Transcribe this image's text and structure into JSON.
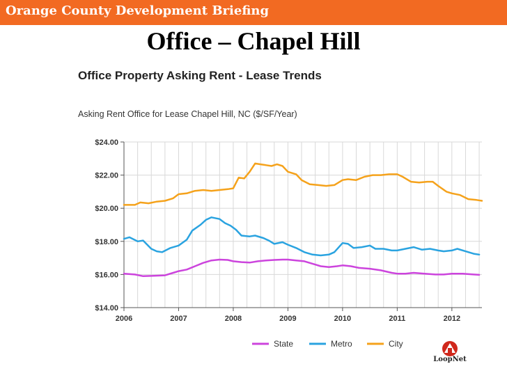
{
  "banner": {
    "text": "Orange County Development Briefing"
  },
  "slide_title": "Office – Chapel Hill",
  "chart_heading": "Office Property Asking Rent - Lease Trends",
  "chart_subtitle": "Asking Rent Office for Lease Chapel Hill, NC ($/SF/Year)",
  "logo_text": "LoopNet",
  "colors": {
    "banner": "#f26a22",
    "state": "#cc44dd",
    "metro": "#2aa3e0",
    "city": "#f5a21b"
  },
  "chart_data": {
    "type": "line",
    "title": "Asking Rent Office for Lease Chapel Hill, NC ($/SF/Year)",
    "xlabel": "",
    "ylabel": "",
    "xlim": [
      2006.0,
      2012.55
    ],
    "ylim": [
      14,
      24
    ],
    "x_ticks": [
      "2006",
      "2007",
      "2008",
      "2009",
      "2010",
      "2011",
      "2012"
    ],
    "y_ticks": [
      "$14.00",
      "$16.00",
      "$18.00",
      "$20.00",
      "$22.00",
      "$24.00"
    ],
    "grid": true,
    "legend": "bottom",
    "series": [
      {
        "name": "State",
        "points": [
          [
            2006.0,
            16.05
          ],
          [
            2006.2,
            16.0
          ],
          [
            2006.35,
            15.9
          ],
          [
            2006.55,
            15.92
          ],
          [
            2006.75,
            15.95
          ],
          [
            2006.9,
            16.1
          ],
          [
            2007.0,
            16.2
          ],
          [
            2007.15,
            16.3
          ],
          [
            2007.3,
            16.5
          ],
          [
            2007.45,
            16.7
          ],
          [
            2007.6,
            16.85
          ],
          [
            2007.75,
            16.9
          ],
          [
            2007.9,
            16.88
          ],
          [
            2008.0,
            16.8
          ],
          [
            2008.15,
            16.75
          ],
          [
            2008.3,
            16.72
          ],
          [
            2008.45,
            16.8
          ],
          [
            2008.6,
            16.85
          ],
          [
            2008.75,
            16.88
          ],
          [
            2008.9,
            16.9
          ],
          [
            2009.0,
            16.9
          ],
          [
            2009.15,
            16.85
          ],
          [
            2009.3,
            16.8
          ],
          [
            2009.45,
            16.65
          ],
          [
            2009.6,
            16.5
          ],
          [
            2009.75,
            16.45
          ],
          [
            2009.9,
            16.5
          ],
          [
            2010.0,
            16.55
          ],
          [
            2010.15,
            16.5
          ],
          [
            2010.3,
            16.4
          ],
          [
            2010.5,
            16.35
          ],
          [
            2010.7,
            16.25
          ],
          [
            2010.9,
            16.1
          ],
          [
            2011.0,
            16.05
          ],
          [
            2011.15,
            16.05
          ],
          [
            2011.3,
            16.1
          ],
          [
            2011.5,
            16.05
          ],
          [
            2011.7,
            16.0
          ],
          [
            2011.85,
            16.0
          ],
          [
            2012.0,
            16.05
          ],
          [
            2012.2,
            16.05
          ],
          [
            2012.4,
            16.0
          ],
          [
            2012.5,
            15.98
          ]
        ]
      },
      {
        "name": "Metro",
        "points": [
          [
            2006.0,
            18.15
          ],
          [
            2006.1,
            18.25
          ],
          [
            2006.25,
            18.0
          ],
          [
            2006.35,
            18.05
          ],
          [
            2006.5,
            17.55
          ],
          [
            2006.6,
            17.4
          ],
          [
            2006.7,
            17.35
          ],
          [
            2006.85,
            17.6
          ],
          [
            2007.0,
            17.75
          ],
          [
            2007.15,
            18.1
          ],
          [
            2007.25,
            18.65
          ],
          [
            2007.4,
            19.0
          ],
          [
            2007.5,
            19.3
          ],
          [
            2007.6,
            19.45
          ],
          [
            2007.75,
            19.35
          ],
          [
            2007.85,
            19.1
          ],
          [
            2007.95,
            18.95
          ],
          [
            2008.05,
            18.7
          ],
          [
            2008.15,
            18.35
          ],
          [
            2008.3,
            18.3
          ],
          [
            2008.4,
            18.35
          ],
          [
            2008.55,
            18.2
          ],
          [
            2008.65,
            18.05
          ],
          [
            2008.75,
            17.85
          ],
          [
            2008.9,
            17.95
          ],
          [
            2009.0,
            17.8
          ],
          [
            2009.15,
            17.6
          ],
          [
            2009.3,
            17.35
          ],
          [
            2009.45,
            17.2
          ],
          [
            2009.6,
            17.15
          ],
          [
            2009.75,
            17.2
          ],
          [
            2009.85,
            17.35
          ],
          [
            2010.0,
            17.9
          ],
          [
            2010.1,
            17.85
          ],
          [
            2010.2,
            17.6
          ],
          [
            2010.35,
            17.65
          ],
          [
            2010.5,
            17.75
          ],
          [
            2010.6,
            17.55
          ],
          [
            2010.75,
            17.55
          ],
          [
            2010.9,
            17.45
          ],
          [
            2011.0,
            17.45
          ],
          [
            2011.15,
            17.55
          ],
          [
            2011.3,
            17.65
          ],
          [
            2011.45,
            17.5
          ],
          [
            2011.6,
            17.55
          ],
          [
            2011.75,
            17.45
          ],
          [
            2011.85,
            17.4
          ],
          [
            2012.0,
            17.45
          ],
          [
            2012.1,
            17.55
          ],
          [
            2012.25,
            17.4
          ],
          [
            2012.4,
            17.25
          ],
          [
            2012.5,
            17.2
          ]
        ]
      },
      {
        "name": "City",
        "points": [
          [
            2006.0,
            20.2
          ],
          [
            2006.1,
            20.2
          ],
          [
            2006.2,
            20.2
          ],
          [
            2006.3,
            20.35
          ],
          [
            2006.45,
            20.3
          ],
          [
            2006.6,
            20.4
          ],
          [
            2006.75,
            20.45
          ],
          [
            2006.9,
            20.6
          ],
          [
            2007.0,
            20.85
          ],
          [
            2007.15,
            20.9
          ],
          [
            2007.3,
            21.05
          ],
          [
            2007.45,
            21.1
          ],
          [
            2007.6,
            21.05
          ],
          [
            2007.75,
            21.1
          ],
          [
            2007.9,
            21.15
          ],
          [
            2008.0,
            21.2
          ],
          [
            2008.1,
            21.85
          ],
          [
            2008.2,
            21.8
          ],
          [
            2008.3,
            22.2
          ],
          [
            2008.4,
            22.7
          ],
          [
            2008.5,
            22.65
          ],
          [
            2008.6,
            22.6
          ],
          [
            2008.7,
            22.55
          ],
          [
            2008.8,
            22.65
          ],
          [
            2008.9,
            22.55
          ],
          [
            2009.0,
            22.2
          ],
          [
            2009.15,
            22.05
          ],
          [
            2009.25,
            21.7
          ],
          [
            2009.4,
            21.45
          ],
          [
            2009.55,
            21.4
          ],
          [
            2009.7,
            21.35
          ],
          [
            2009.85,
            21.4
          ],
          [
            2010.0,
            21.7
          ],
          [
            2010.1,
            21.75
          ],
          [
            2010.25,
            21.7
          ],
          [
            2010.4,
            21.9
          ],
          [
            2010.55,
            22.0
          ],
          [
            2010.7,
            22.0
          ],
          [
            2010.85,
            22.05
          ],
          [
            2011.0,
            22.05
          ],
          [
            2011.1,
            21.9
          ],
          [
            2011.25,
            21.6
          ],
          [
            2011.4,
            21.55
          ],
          [
            2011.55,
            21.6
          ],
          [
            2011.65,
            21.6
          ],
          [
            2011.75,
            21.35
          ],
          [
            2011.9,
            21.0
          ],
          [
            2012.0,
            20.9
          ],
          [
            2012.15,
            20.8
          ],
          [
            2012.3,
            20.55
          ],
          [
            2012.45,
            20.5
          ],
          [
            2012.55,
            20.45
          ]
        ]
      }
    ]
  }
}
